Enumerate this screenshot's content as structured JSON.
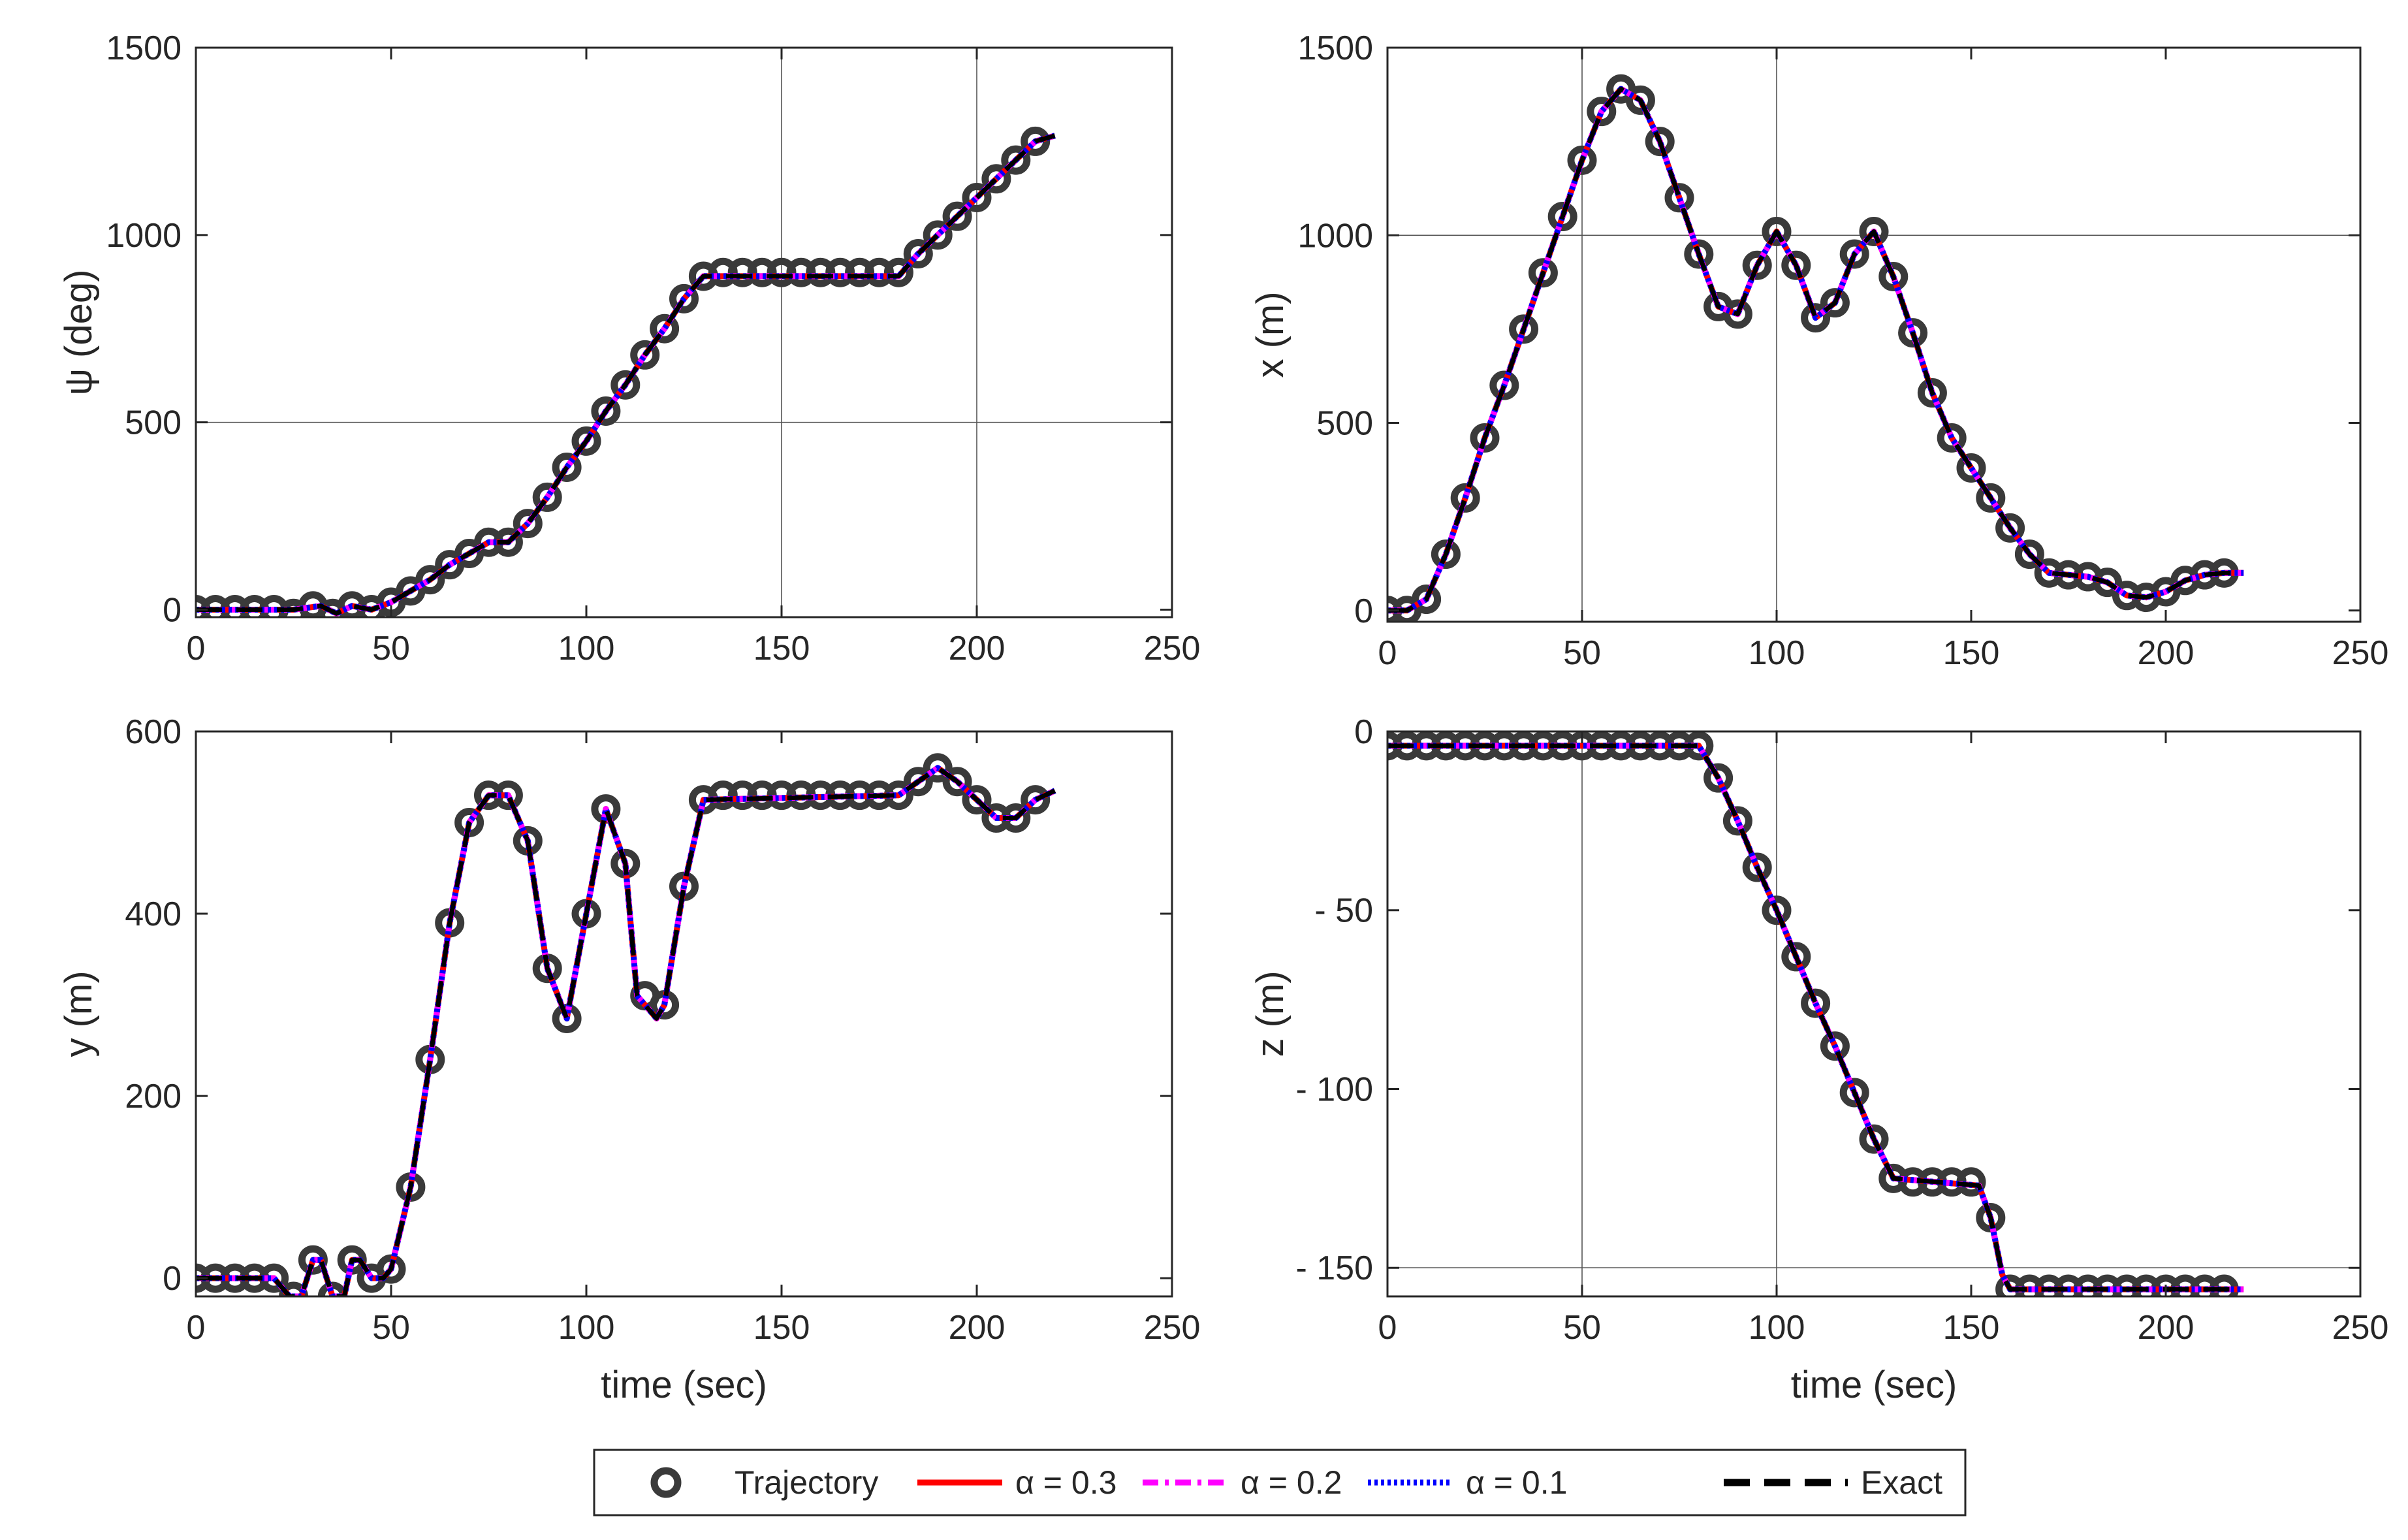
{
  "legend": {
    "entries": [
      {
        "label": "Trajectory",
        "style": "marker",
        "color": "#3a3a3a"
      },
      {
        "label": "α = 0.3",
        "style": "solid",
        "color": "#ff0000"
      },
      {
        "label": "α = 0.2",
        "style": "dashdot",
        "color": "#ff00ff"
      },
      {
        "label": "α = 0.1",
        "style": "dotted",
        "color": "#0000ff"
      },
      {
        "label": "Exact",
        "style": "dashed",
        "color": "#000000"
      }
    ]
  },
  "chart_data": [
    {
      "type": "line",
      "ylabel": "ψ (deg)",
      "xlabel": "",
      "xlim": [
        0,
        250
      ],
      "ylim": [
        -20,
        1500
      ],
      "xticks": [
        0,
        50,
        100,
        150,
        200,
        250
      ],
      "yticks": [
        0,
        500,
        1000,
        1500
      ],
      "grid": {
        "vertical": [
          150,
          200
        ],
        "horizontal": [
          500
        ]
      },
      "exact": {
        "x": [
          0,
          25,
          32,
          36,
          40,
          45,
          50,
          55,
          60,
          65,
          70,
          75,
          80,
          85,
          90,
          95,
          100,
          105,
          110,
          115,
          120,
          125,
          130,
          180,
          185,
          190,
          195,
          200,
          205,
          210,
          215,
          220
        ],
        "y": [
          0,
          0,
          10,
          -10,
          10,
          0,
          20,
          50,
          80,
          120,
          150,
          180,
          180,
          230,
          300,
          380,
          450,
          530,
          600,
          680,
          750,
          830,
          890,
          890,
          950,
          1000,
          1050,
          1100,
          1150,
          1200,
          1250,
          1265
        ]
      },
      "markers": {
        "x": [
          0,
          5,
          10,
          15,
          20,
          25,
          30,
          35,
          40,
          45,
          50,
          55,
          60,
          65,
          70,
          75,
          80,
          85,
          90,
          95,
          100,
          105,
          110,
          115,
          120,
          125,
          130,
          135,
          140,
          145,
          150,
          155,
          160,
          165,
          170,
          175,
          180,
          185,
          190,
          195,
          200,
          205,
          210,
          215
        ],
        "y": [
          0,
          0,
          0,
          0,
          0,
          -10,
          10,
          -10,
          10,
          0,
          20,
          50,
          80,
          120,
          150,
          180,
          180,
          230,
          300,
          380,
          450,
          530,
          600,
          680,
          750,
          830,
          890,
          900,
          900,
          900,
          900,
          900,
          900,
          900,
          900,
          900,
          900,
          950,
          1000,
          1050,
          1100,
          1150,
          1200,
          1250
        ]
      }
    },
    {
      "type": "line",
      "ylabel": "x (m)",
      "xlabel": "",
      "xlim": [
        0,
        250
      ],
      "ylim": [
        -30,
        1500
      ],
      "xticks": [
        0,
        50,
        100,
        150,
        200,
        250
      ],
      "yticks": [
        0,
        500,
        1000,
        1500
      ],
      "grid": {
        "vertical": [
          50,
          100
        ],
        "horizontal": [
          1000
        ]
      },
      "exact": {
        "x": [
          0,
          5,
          10,
          15,
          20,
          25,
          30,
          35,
          40,
          45,
          50,
          55,
          60,
          65,
          70,
          75,
          80,
          85,
          90,
          95,
          100,
          105,
          110,
          115,
          120,
          125,
          130,
          135,
          140,
          145,
          150,
          155,
          160,
          165,
          170,
          175,
          180,
          185,
          190,
          195,
          200,
          205,
          210,
          215,
          220
        ],
        "y": [
          0,
          0,
          30,
          150,
          300,
          460,
          600,
          750,
          900,
          1050,
          1200,
          1330,
          1390,
          1360,
          1250,
          1100,
          950,
          810,
          790,
          920,
          1010,
          920,
          780,
          820,
          950,
          1010,
          890,
          740,
          580,
          460,
          380,
          300,
          220,
          150,
          100,
          95,
          90,
          75,
          40,
          35,
          50,
          80,
          95,
          100,
          100
        ]
      },
      "markers": {
        "x": [
          0,
          5,
          10,
          15,
          20,
          25,
          30,
          35,
          40,
          45,
          50,
          55,
          60,
          65,
          70,
          75,
          80,
          85,
          90,
          95,
          100,
          105,
          110,
          115,
          120,
          125,
          130,
          135,
          140,
          145,
          150,
          155,
          160,
          165,
          170,
          175,
          180,
          185,
          190,
          195,
          200,
          205,
          210,
          215
        ],
        "y": [
          0,
          0,
          30,
          150,
          300,
          460,
          600,
          750,
          900,
          1050,
          1200,
          1330,
          1390,
          1360,
          1250,
          1100,
          950,
          810,
          790,
          920,
          1010,
          920,
          780,
          820,
          950,
          1010,
          890,
          740,
          580,
          460,
          380,
          300,
          220,
          150,
          100,
          95,
          90,
          75,
          40,
          35,
          50,
          80,
          95,
          100
        ]
      }
    },
    {
      "type": "line",
      "ylabel": "y (m)",
      "xlabel": "time (sec)",
      "xlim": [
        0,
        250
      ],
      "ylim": [
        -20,
        600
      ],
      "xticks": [
        0,
        50,
        100,
        150,
        200,
        250
      ],
      "yticks": [
        0,
        200,
        400,
        600
      ],
      "grid": {
        "vertical": [],
        "horizontal": []
      },
      "exact": {
        "x": [
          0,
          20,
          24,
          27,
          30,
          32,
          35,
          38,
          40,
          42,
          45,
          48,
          50,
          55,
          60,
          65,
          70,
          75,
          80,
          85,
          90,
          95,
          100,
          105,
          110,
          113,
          118,
          120,
          125,
          130,
          180,
          185,
          190,
          195,
          200,
          205,
          210,
          215,
          220
        ],
        "y": [
          0,
          0,
          -20,
          -20,
          20,
          20,
          -20,
          -20,
          20,
          20,
          0,
          0,
          10,
          100,
          240,
          390,
          500,
          530,
          530,
          480,
          340,
          285,
          400,
          515,
          455,
          310,
          285,
          300,
          430,
          525,
          530,
          545,
          560,
          545,
          525,
          505,
          505,
          525,
          535
        ]
      },
      "markers": {
        "x": [
          0,
          5,
          10,
          15,
          20,
          25,
          30,
          35,
          40,
          45,
          50,
          55,
          60,
          65,
          70,
          75,
          80,
          85,
          90,
          95,
          100,
          105,
          110,
          115,
          120,
          125,
          130,
          135,
          140,
          145,
          150,
          155,
          160,
          165,
          170,
          175,
          180,
          185,
          190,
          195,
          200,
          205,
          210,
          215
        ],
        "y": [
          0,
          0,
          0,
          0,
          0,
          -20,
          20,
          -20,
          20,
          0,
          10,
          100,
          240,
          390,
          500,
          530,
          530,
          480,
          340,
          285,
          400,
          515,
          455,
          310,
          300,
          430,
          525,
          530,
          530,
          530,
          530,
          530,
          530,
          530,
          530,
          530,
          530,
          545,
          560,
          545,
          525,
          505,
          505,
          525
        ]
      }
    },
    {
      "type": "line",
      "ylabel": "z (m)",
      "xlabel": "time (sec)",
      "xlim": [
        0,
        250
      ],
      "ylim": [
        -158,
        0
      ],
      "xticks": [
        0,
        50,
        100,
        150,
        200,
        250
      ],
      "yticks": [
        0,
        -50,
        -100,
        -150
      ],
      "yticklabels": [
        "0",
        "- 50",
        "- 100",
        "- 150"
      ],
      "grid": {
        "vertical": [
          50,
          100
        ],
        "horizontal": [
          -150
        ]
      },
      "exact": {
        "x": [
          0,
          80,
          85,
          90,
          95,
          100,
          105,
          110,
          115,
          120,
          125,
          130,
          152,
          155,
          158,
          160,
          220
        ],
        "y": [
          -4,
          -4,
          -13,
          -25,
          -38,
          -50,
          -63,
          -76,
          -88,
          -101,
          -114,
          -125,
          -127,
          -136,
          -152,
          -156,
          -156
        ]
      },
      "markers": {
        "x": [
          0,
          5,
          10,
          15,
          20,
          25,
          30,
          35,
          40,
          45,
          50,
          55,
          60,
          65,
          70,
          75,
          80,
          85,
          90,
          95,
          100,
          105,
          110,
          115,
          120,
          125,
          130,
          135,
          140,
          145,
          150,
          155,
          160,
          165,
          170,
          175,
          180,
          185,
          190,
          195,
          200,
          205,
          210,
          215
        ],
        "y": [
          -4,
          -4,
          -4,
          -4,
          -4,
          -4,
          -4,
          -4,
          -4,
          -4,
          -4,
          -4,
          -4,
          -4,
          -4,
          -4,
          -4,
          -13,
          -25,
          -38,
          -50,
          -63,
          -76,
          -88,
          -101,
          -114,
          -125,
          -126,
          -126,
          -126,
          -126,
          -136,
          -156,
          -156,
          -156,
          -156,
          -156,
          -156,
          -156,
          -156,
          -156,
          -156,
          -156,
          -156
        ]
      }
    }
  ]
}
